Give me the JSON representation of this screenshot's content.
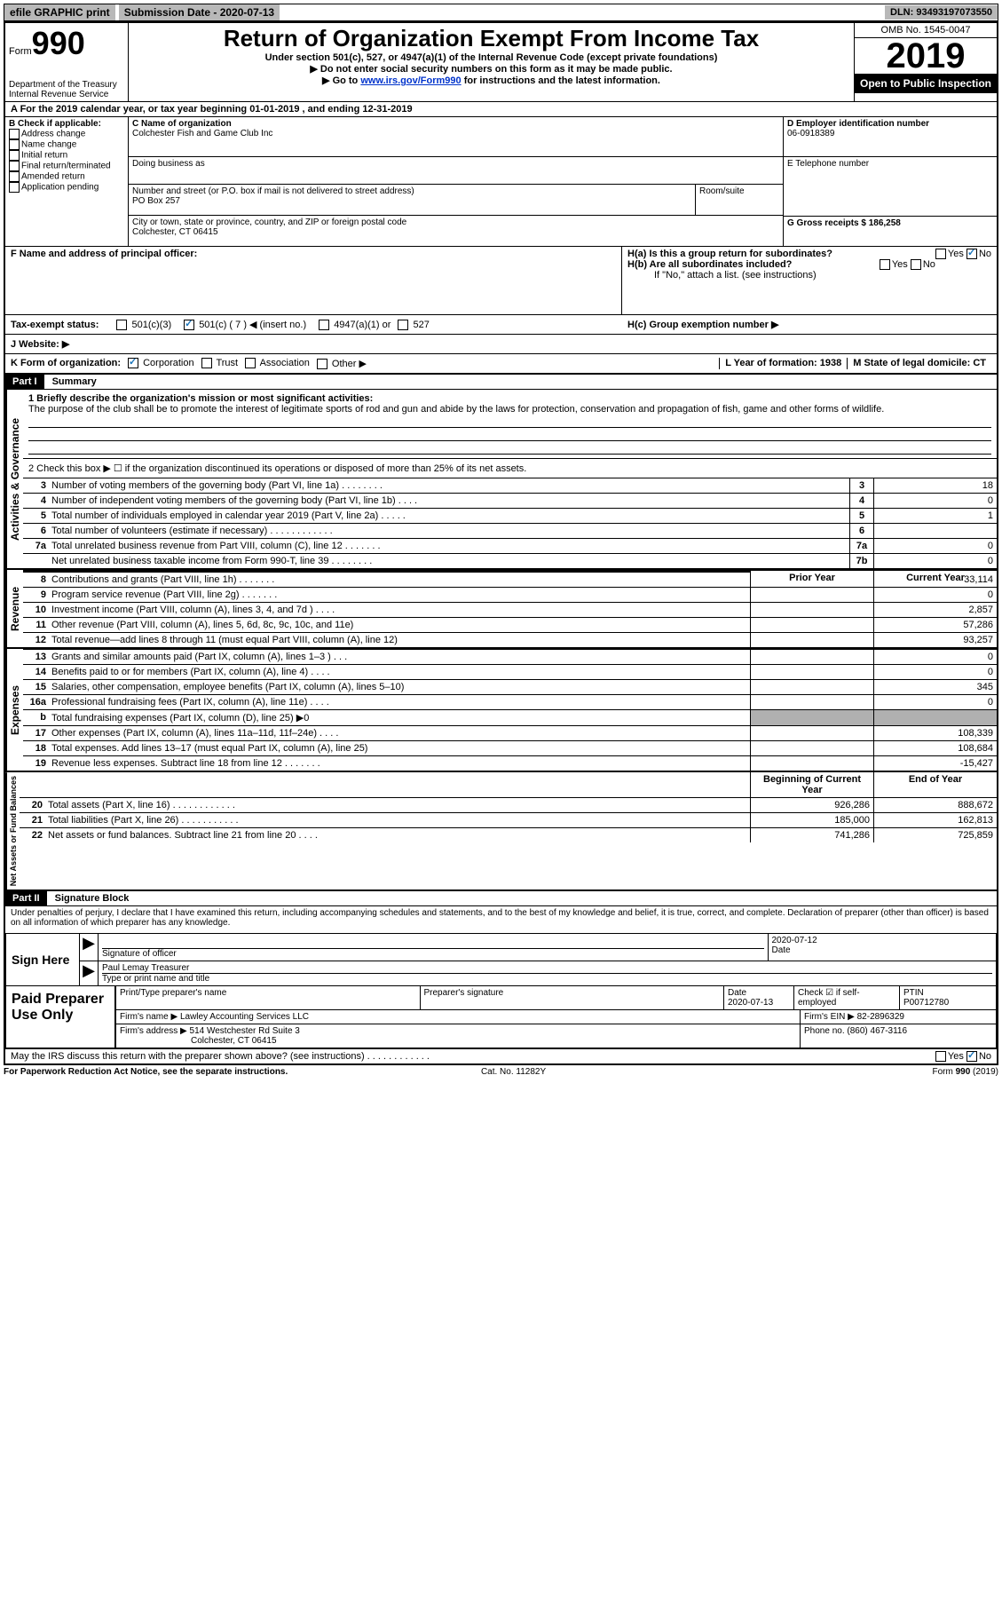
{
  "topbar": {
    "efile": "efile GRAPHIC print",
    "submission_label": "Submission Date - 2020-07-13",
    "dln": "DLN: 93493197073550"
  },
  "header": {
    "form_label": "Form",
    "form_number": "990",
    "dept": "Department of the Treasury",
    "irs": "Internal Revenue Service",
    "title": "Return of Organization Exempt From Income Tax",
    "sub1": "Under section 501(c), 527, or 4947(a)(1) of the Internal Revenue Code (except private foundations)",
    "sub2": "▶ Do not enter social security numbers on this form as it may be made public.",
    "sub3_a": "▶ Go to ",
    "sub3_link": "www.irs.gov/Form990",
    "sub3_b": " for instructions and the latest information.",
    "omb": "OMB No. 1545-0047",
    "year": "2019",
    "open": "Open to Public Inspection"
  },
  "row_a": "A For the 2019 calendar year, or tax year beginning 01-01-2019     , and ending 12-31-2019",
  "b": {
    "label": "B Check if applicable:",
    "items": [
      "Address change",
      "Name change",
      "Initial return",
      "Final return/terminated",
      "Amended return",
      "Application pending"
    ]
  },
  "c": {
    "name_label": "C Name of organization",
    "name": "Colchester Fish and Game Club Inc",
    "dba_label": "Doing business as",
    "addr_label": "Number and street (or P.O. box if mail is not delivered to street address)",
    "room_label": "Room/suite",
    "addr": "PO Box 257",
    "city_label": "City or town, state or province, country, and ZIP or foreign postal code",
    "city": "Colchester, CT  06415"
  },
  "d": {
    "label": "D Employer identification number",
    "ein": "06-0918389",
    "e_label": "E Telephone number",
    "g_label": "G Gross receipts $ 186,258"
  },
  "f": {
    "label": "F  Name and address of principal officer:"
  },
  "h": {
    "a": "H(a)  Is this a group return for subordinates?",
    "b": "H(b)  Are all subordinates included?",
    "b_note": "If \"No,\" attach a list. (see instructions)",
    "c": "H(c)  Group exemption number ▶",
    "yes": "Yes",
    "no": "No"
  },
  "tax_status": {
    "label": "Tax-exempt status:",
    "c3": "501(c)(3)",
    "c": "501(c) ( 7 ) ◀ (insert no.)",
    "a1": "4947(a)(1) or",
    "s527": "527"
  },
  "j": {
    "label": "J   Website: ▶"
  },
  "k": {
    "label": "K Form of organization:",
    "corp": "Corporation",
    "trust": "Trust",
    "assoc": "Association",
    "other": "Other ▶",
    "l": "L Year of formation: 1938",
    "m": "M State of legal domicile: CT"
  },
  "part1": {
    "header": "Part I",
    "title": "Summary",
    "line1_label": "1  Briefly describe the organization's mission or most significant activities:",
    "mission": "The purpose of the club shall be to promote the interest of legitimate sports of rod and gun and abide by the laws for protection, conservation and propagation of fish, game and other forms of wildlife.",
    "line2": "2   Check this box ▶ ☐  if the organization discontinued its operations or disposed of more than 25% of its net assets.",
    "lines_ag": [
      {
        "n": "3",
        "t": "Number of voting members of the governing body (Part VI, line 1a)  .   .   .   .   .   .   .   .",
        "box": "3",
        "v": "18"
      },
      {
        "n": "4",
        "t": "Number of independent voting members of the governing body (Part VI, line 1b)   .   .   .   .",
        "box": "4",
        "v": "0"
      },
      {
        "n": "5",
        "t": "Total number of individuals employed in calendar year 2019 (Part V, line 2a)  .   .   .   .   .",
        "box": "5",
        "v": "1"
      },
      {
        "n": "6",
        "t": "Total number of volunteers (estimate if necessary)   .   .   .   .   .   .   .   .   .   .   .   .",
        "box": "6",
        "v": ""
      },
      {
        "n": "7a",
        "t": "Total unrelated business revenue from Part VIII, column (C), line 12  .   .   .   .   .   .   .",
        "box": "7a",
        "v": "0"
      },
      {
        "n": "",
        "t": "Net unrelated business taxable income from Form 990-T, line 39   .   .   .   .   .   .   .   .",
        "box": "7b",
        "v": "0"
      }
    ],
    "col_prior": "Prior Year",
    "col_current": "Current Year",
    "revenue": [
      {
        "n": "8",
        "t": "Contributions and grants (Part VIII, line 1h)   .   .   .   .   .   .   .",
        "p": "",
        "c": "33,114"
      },
      {
        "n": "9",
        "t": "Program service revenue (Part VIII, line 2g)   .   .   .   .   .   .   .",
        "p": "",
        "c": "0"
      },
      {
        "n": "10",
        "t": "Investment income (Part VIII, column (A), lines 3, 4, and 7d )   .   .   .   .",
        "p": "",
        "c": "2,857"
      },
      {
        "n": "11",
        "t": "Other revenue (Part VIII, column (A), lines 5, 6d, 8c, 9c, 10c, and 11e)",
        "p": "",
        "c": "57,286"
      },
      {
        "n": "12",
        "t": "Total revenue—add lines 8 through 11 (must equal Part VIII, column (A), line 12)",
        "p": "",
        "c": "93,257"
      }
    ],
    "expenses": [
      {
        "n": "13",
        "t": "Grants and similar amounts paid (Part IX, column (A), lines 1–3 )  .   .   .",
        "p": "",
        "c": "0"
      },
      {
        "n": "14",
        "t": "Benefits paid to or for members (Part IX, column (A), line 4)  .   .   .   .",
        "p": "",
        "c": "0"
      },
      {
        "n": "15",
        "t": "Salaries, other compensation, employee benefits (Part IX, column (A), lines 5–10)",
        "p": "",
        "c": "345"
      },
      {
        "n": "16a",
        "t": "Professional fundraising fees (Part IX, column (A), line 11e)  .   .   .   .",
        "p": "",
        "c": "0"
      },
      {
        "n": "b",
        "t": "Total fundraising expenses (Part IX, column (D), line 25) ▶0",
        "p": "shaded",
        "c": "shaded"
      },
      {
        "n": "17",
        "t": "Other expenses (Part IX, column (A), lines 11a–11d, 11f–24e)  .   .   .   .",
        "p": "",
        "c": "108,339"
      },
      {
        "n": "18",
        "t": "Total expenses. Add lines 13–17 (must equal Part IX, column (A), line 25)",
        "p": "",
        "c": "108,684"
      },
      {
        "n": "19",
        "t": "Revenue less expenses. Subtract line 18 from line 12 .   .   .   .   .   .   .",
        "p": "",
        "c": "-15,427"
      }
    ],
    "col_begin": "Beginning of Current Year",
    "col_end": "End of Year",
    "netassets": [
      {
        "n": "20",
        "t": "Total assets (Part X, line 16)  .   .   .   .   .   .   .   .   .   .   .   .",
        "p": "926,286",
        "c": "888,672"
      },
      {
        "n": "21",
        "t": "Total liabilities (Part X, line 26)  .   .   .   .   .   .   .   .   .   .   .",
        "p": "185,000",
        "c": "162,813"
      },
      {
        "n": "22",
        "t": "Net assets or fund balances. Subtract line 21 from line 20  .   .   .   .",
        "p": "741,286",
        "c": "725,859"
      }
    ],
    "vert_ag": "Activities & Governance",
    "vert_rev": "Revenue",
    "vert_exp": "Expenses",
    "vert_na": "Net Assets or Fund Balances"
  },
  "part2": {
    "header": "Part II",
    "title": "Signature Block",
    "decl": "Under penalties of perjury, I declare that I have examined this return, including accompanying schedules and statements, and to the best of my knowledge and belief, it is true, correct, and complete. Declaration of preparer (other than officer) is based on all information of which preparer has any knowledge.",
    "sign_here": "Sign Here",
    "sig_officer": "Signature of officer",
    "date_label": "Date",
    "date_val": "2020-07-12",
    "name_title": "Paul Lemay  Treasurer",
    "type_name": "Type or print name and title",
    "paid": "Paid Preparer Use Only",
    "print_name": "Print/Type preparer's name",
    "prep_sig": "Preparer's signature",
    "p_date_label": "Date",
    "p_date": "2020-07-13",
    "check_label": "Check ☑ if self-employed",
    "ptin_label": "PTIN",
    "ptin": "P00712780",
    "firm_name_label": "Firm's name      ▶",
    "firm_name": "Lawley Accounting Services LLC",
    "firm_ein_label": "Firm's EIN ▶",
    "firm_ein": "82-2896329",
    "firm_addr_label": "Firm's address ▶",
    "firm_addr1": "514 Westchester Rd Suite 3",
    "firm_addr2": "Colchester, CT  06415",
    "phone_label": "Phone no.",
    "phone": "(860) 467-3116",
    "may_discuss": "May the IRS discuss this return with the preparer shown above? (see instructions)   .   .   .   .   .   .   .   .   .   .   .   ."
  },
  "footer": {
    "paperwork": "For Paperwork Reduction Act Notice, see the separate instructions.",
    "cat": "Cat. No. 11282Y",
    "form": "Form 990 (2019)"
  },
  "colors": {
    "gray": "#b8b8b8",
    "link": "#0033cc",
    "check": "#1a75bb"
  }
}
